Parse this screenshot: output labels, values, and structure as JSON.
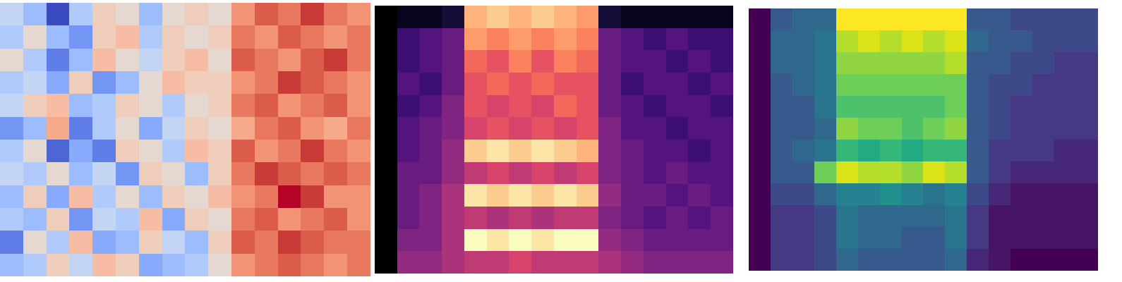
{
  "chart_data": [
    {
      "type": "heatmap",
      "color": "coolwarm",
      "tick_labels": false,
      "cells": [
        [
          -0.1,
          -0.3,
          -0.8,
          -0.2,
          0.2,
          0.1,
          -0.3,
          0.1,
          0.2,
          0.1,
          0.5,
          0.7,
          0.6,
          0.8,
          0.6,
          0.5
        ],
        [
          -0.2,
          0.1,
          -0.3,
          -0.5,
          0.2,
          0.3,
          -0.2,
          0.2,
          0.1,
          0.2,
          0.6,
          0.5,
          0.7,
          0.6,
          0.5,
          0.6
        ],
        [
          0.1,
          -0.2,
          -0.6,
          -0.3,
          0.3,
          0.1,
          -0.1,
          0.2,
          0.3,
          0.1,
          0.7,
          0.6,
          0.5,
          0.7,
          0.8,
          0.6
        ],
        [
          -0.2,
          -0.1,
          -0.4,
          0.2,
          -0.5,
          -0.3,
          0.1,
          0.3,
          0.2,
          0.2,
          0.5,
          0.6,
          0.8,
          0.7,
          0.6,
          0.5
        ],
        [
          -0.1,
          0.2,
          0.3,
          -0.3,
          -0.2,
          0.2,
          0.1,
          -0.2,
          0.1,
          0.2,
          0.6,
          0.7,
          0.5,
          0.6,
          0.7,
          0.5
        ],
        [
          -0.5,
          -0.3,
          0.4,
          -0.6,
          -0.2,
          0.1,
          -0.4,
          -0.1,
          0.2,
          0.1,
          0.4,
          0.6,
          0.7,
          0.5,
          0.4,
          0.6
        ],
        [
          -0.2,
          0.1,
          -0.7,
          -0.4,
          -0.6,
          0.2,
          0.1,
          -0.2,
          0.3,
          0.2,
          0.7,
          0.5,
          0.6,
          0.8,
          0.6,
          0.5
        ],
        [
          -0.1,
          -0.2,
          0.1,
          -0.3,
          -0.1,
          -0.5,
          0.2,
          0.1,
          -0.3,
          0.2,
          0.6,
          0.8,
          0.7,
          0.6,
          0.7,
          0.6
        ],
        [
          -0.3,
          0.2,
          -0.4,
          0.3,
          -0.2,
          0.1,
          -0.3,
          0.2,
          0.1,
          0.3,
          0.5,
          0.6,
          0.9,
          0.8,
          0.5,
          0.5
        ],
        [
          -0.2,
          -0.3,
          0.2,
          -0.5,
          -0.1,
          -0.2,
          0.3,
          -0.4,
          0.2,
          0.1,
          0.6,
          0.7,
          0.5,
          0.6,
          0.7,
          0.5
        ],
        [
          -0.6,
          0.1,
          -0.2,
          0.3,
          -0.4,
          -0.3,
          0.2,
          -0.1,
          -0.3,
          0.2,
          0.7,
          0.6,
          0.8,
          0.7,
          0.6,
          0.6
        ],
        [
          -0.3,
          -0.2,
          0.2,
          -0.1,
          0.3,
          0.2,
          -0.4,
          -0.3,
          -0.2,
          0.1,
          0.5,
          0.6,
          0.7,
          0.6,
          0.5,
          0.6
        ]
      ]
    },
    {
      "type": "heatmap",
      "color": "magma",
      "tick_labels": false,
      "cells": [
        [
          0.0,
          0.05,
          0.05,
          0.1,
          0.8,
          0.85,
          0.8,
          0.85,
          0.8,
          0.75,
          0.1,
          0.05,
          0.05,
          0.05,
          0.05,
          0.05
        ],
        [
          0.0,
          0.2,
          0.25,
          0.3,
          0.75,
          0.7,
          0.75,
          0.7,
          0.75,
          0.7,
          0.3,
          0.25,
          0.2,
          0.25,
          0.2,
          0.2
        ],
        [
          0.0,
          0.2,
          0.25,
          0.3,
          0.65,
          0.6,
          0.7,
          0.6,
          0.7,
          0.65,
          0.3,
          0.25,
          0.25,
          0.2,
          0.25,
          0.2
        ],
        [
          0.0,
          0.25,
          0.2,
          0.3,
          0.6,
          0.65,
          0.6,
          0.65,
          0.6,
          0.6,
          0.3,
          0.2,
          0.25,
          0.25,
          0.2,
          0.25
        ],
        [
          0.0,
          0.2,
          0.25,
          0.35,
          0.6,
          0.55,
          0.6,
          0.55,
          0.65,
          0.6,
          0.3,
          0.25,
          0.2,
          0.25,
          0.25,
          0.2
        ],
        [
          0.0,
          0.25,
          0.3,
          0.35,
          0.55,
          0.6,
          0.55,
          0.6,
          0.55,
          0.6,
          0.35,
          0.25,
          0.25,
          0.2,
          0.25,
          0.25
        ],
        [
          0.0,
          0.25,
          0.3,
          0.4,
          0.85,
          0.9,
          0.85,
          0.9,
          0.85,
          0.8,
          0.35,
          0.3,
          0.25,
          0.25,
          0.2,
          0.25
        ],
        [
          0.0,
          0.3,
          0.3,
          0.4,
          0.5,
          0.55,
          0.5,
          0.55,
          0.5,
          0.55,
          0.35,
          0.3,
          0.25,
          0.3,
          0.25,
          0.25
        ],
        [
          0.0,
          0.3,
          0.35,
          0.45,
          0.9,
          0.85,
          0.9,
          0.85,
          0.9,
          0.85,
          0.4,
          0.3,
          0.3,
          0.25,
          0.3,
          0.25
        ],
        [
          0.0,
          0.3,
          0.35,
          0.45,
          0.5,
          0.45,
          0.5,
          0.45,
          0.5,
          0.5,
          0.35,
          0.3,
          0.25,
          0.3,
          0.25,
          0.3
        ],
        [
          0.0,
          0.35,
          0.35,
          0.45,
          0.95,
          0.9,
          0.95,
          0.9,
          0.95,
          0.95,
          0.4,
          0.35,
          0.3,
          0.3,
          0.3,
          0.3
        ],
        [
          0.0,
          0.4,
          0.4,
          0.45,
          0.5,
          0.5,
          0.55,
          0.5,
          0.5,
          0.5,
          0.45,
          0.4,
          0.35,
          0.35,
          0.35,
          0.35
        ]
      ]
    },
    {
      "type": "heatmap",
      "color": "viridis",
      "tick_labels": false,
      "cells": [
        [
          0.05,
          0.3,
          0.35,
          0.35,
          0.95,
          0.95,
          0.95,
          0.95,
          0.95,
          0.95,
          0.3,
          0.3,
          0.25,
          0.25,
          0.25,
          0.25
        ],
        [
          0.05,
          0.35,
          0.35,
          0.4,
          0.85,
          0.9,
          0.85,
          0.9,
          0.85,
          0.9,
          0.35,
          0.3,
          0.3,
          0.25,
          0.25,
          0.25
        ],
        [
          0.05,
          0.35,
          0.35,
          0.4,
          0.8,
          0.8,
          0.8,
          0.8,
          0.8,
          0.85,
          0.3,
          0.3,
          0.25,
          0.25,
          0.2,
          0.2
        ],
        [
          0.05,
          0.3,
          0.35,
          0.4,
          0.75,
          0.75,
          0.75,
          0.75,
          0.75,
          0.75,
          0.3,
          0.25,
          0.25,
          0.2,
          0.2,
          0.2
        ],
        [
          0.05,
          0.3,
          0.3,
          0.4,
          0.7,
          0.7,
          0.7,
          0.7,
          0.7,
          0.75,
          0.3,
          0.25,
          0.2,
          0.2,
          0.2,
          0.2
        ],
        [
          0.05,
          0.3,
          0.3,
          0.35,
          0.8,
          0.75,
          0.75,
          0.7,
          0.75,
          0.8,
          0.3,
          0.25,
          0.2,
          0.2,
          0.2,
          0.2
        ],
        [
          0.05,
          0.3,
          0.35,
          0.4,
          0.65,
          0.6,
          0.65,
          0.6,
          0.65,
          0.65,
          0.3,
          0.2,
          0.2,
          0.2,
          0.15,
          0.15
        ],
        [
          0.05,
          0.3,
          0.3,
          0.75,
          0.9,
          0.85,
          0.85,
          0.8,
          0.9,
          0.85,
          0.3,
          0.2,
          0.15,
          0.15,
          0.15,
          0.15
        ],
        [
          0.05,
          0.25,
          0.25,
          0.35,
          0.45,
          0.45,
          0.5,
          0.45,
          0.4,
          0.45,
          0.25,
          0.15,
          0.1,
          0.1,
          0.1,
          0.1
        ],
        [
          0.05,
          0.2,
          0.2,
          0.25,
          0.4,
          0.35,
          0.35,
          0.35,
          0.35,
          0.4,
          0.2,
          0.1,
          0.1,
          0.1,
          0.1,
          0.1
        ],
        [
          0.05,
          0.2,
          0.2,
          0.25,
          0.4,
          0.35,
          0.35,
          0.3,
          0.3,
          0.4,
          0.2,
          0.1,
          0.1,
          0.1,
          0.1,
          0.1
        ],
        [
          0.05,
          0.2,
          0.2,
          0.25,
          0.35,
          0.3,
          0.3,
          0.3,
          0.3,
          0.35,
          0.15,
          0.1,
          0.05,
          0.05,
          0.05,
          0.05
        ]
      ]
    }
  ]
}
